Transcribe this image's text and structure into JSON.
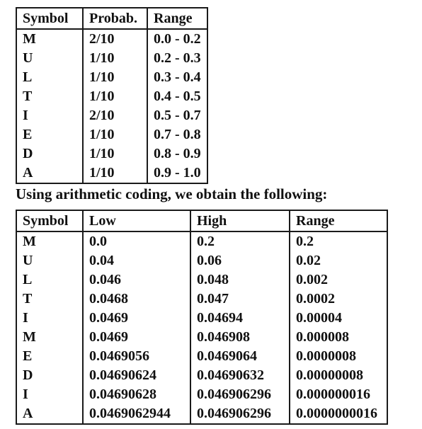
{
  "prob_table": {
    "headers": [
      "Symbol",
      "Probab.",
      "Range"
    ],
    "rows": [
      [
        "M",
        "2/10",
        "0.0 - 0.2"
      ],
      [
        "U",
        "1/10",
        "0.2 - 0.3"
      ],
      [
        "L",
        "1/10",
        "0.3 - 0.4"
      ],
      [
        "T",
        "1/10",
        "0.4 - 0.5"
      ],
      [
        "I",
        "2/10",
        "0.5 - 0.7"
      ],
      [
        "E",
        "1/10",
        "0.7 - 0.8"
      ],
      [
        "D",
        "1/10",
        "0.8 - 0.9"
      ],
      [
        "A",
        "1/10",
        "0.9 - 1.0"
      ]
    ]
  },
  "caption": "Using arithmetic coding, we obtain the following:",
  "code_table": {
    "headers": [
      "Symbol",
      "Low",
      "High",
      "Range"
    ],
    "rows": [
      [
        "M",
        "0.0",
        "0.2",
        "0.2"
      ],
      [
        "U",
        "0.04",
        "0.06",
        "0.02"
      ],
      [
        "L",
        "0.046",
        "0.048",
        "0.002"
      ],
      [
        "T",
        "0.0468",
        "0.047",
        "0.0002"
      ],
      [
        "I",
        "0.0469",
        "0.04694",
        "0.00004"
      ],
      [
        "M",
        "0.0469",
        "0.046908",
        "0.000008"
      ],
      [
        "E",
        "0.0469056",
        "0.0469064",
        "0.0000008"
      ],
      [
        "D",
        "0.04690624",
        "0.04690632",
        "0.00000008"
      ],
      [
        "I",
        "0.04690628",
        "0.046906296",
        "0.000000016"
      ],
      [
        "A",
        "0.0469062944",
        "0.046906296",
        "0.0000000016"
      ]
    ]
  }
}
